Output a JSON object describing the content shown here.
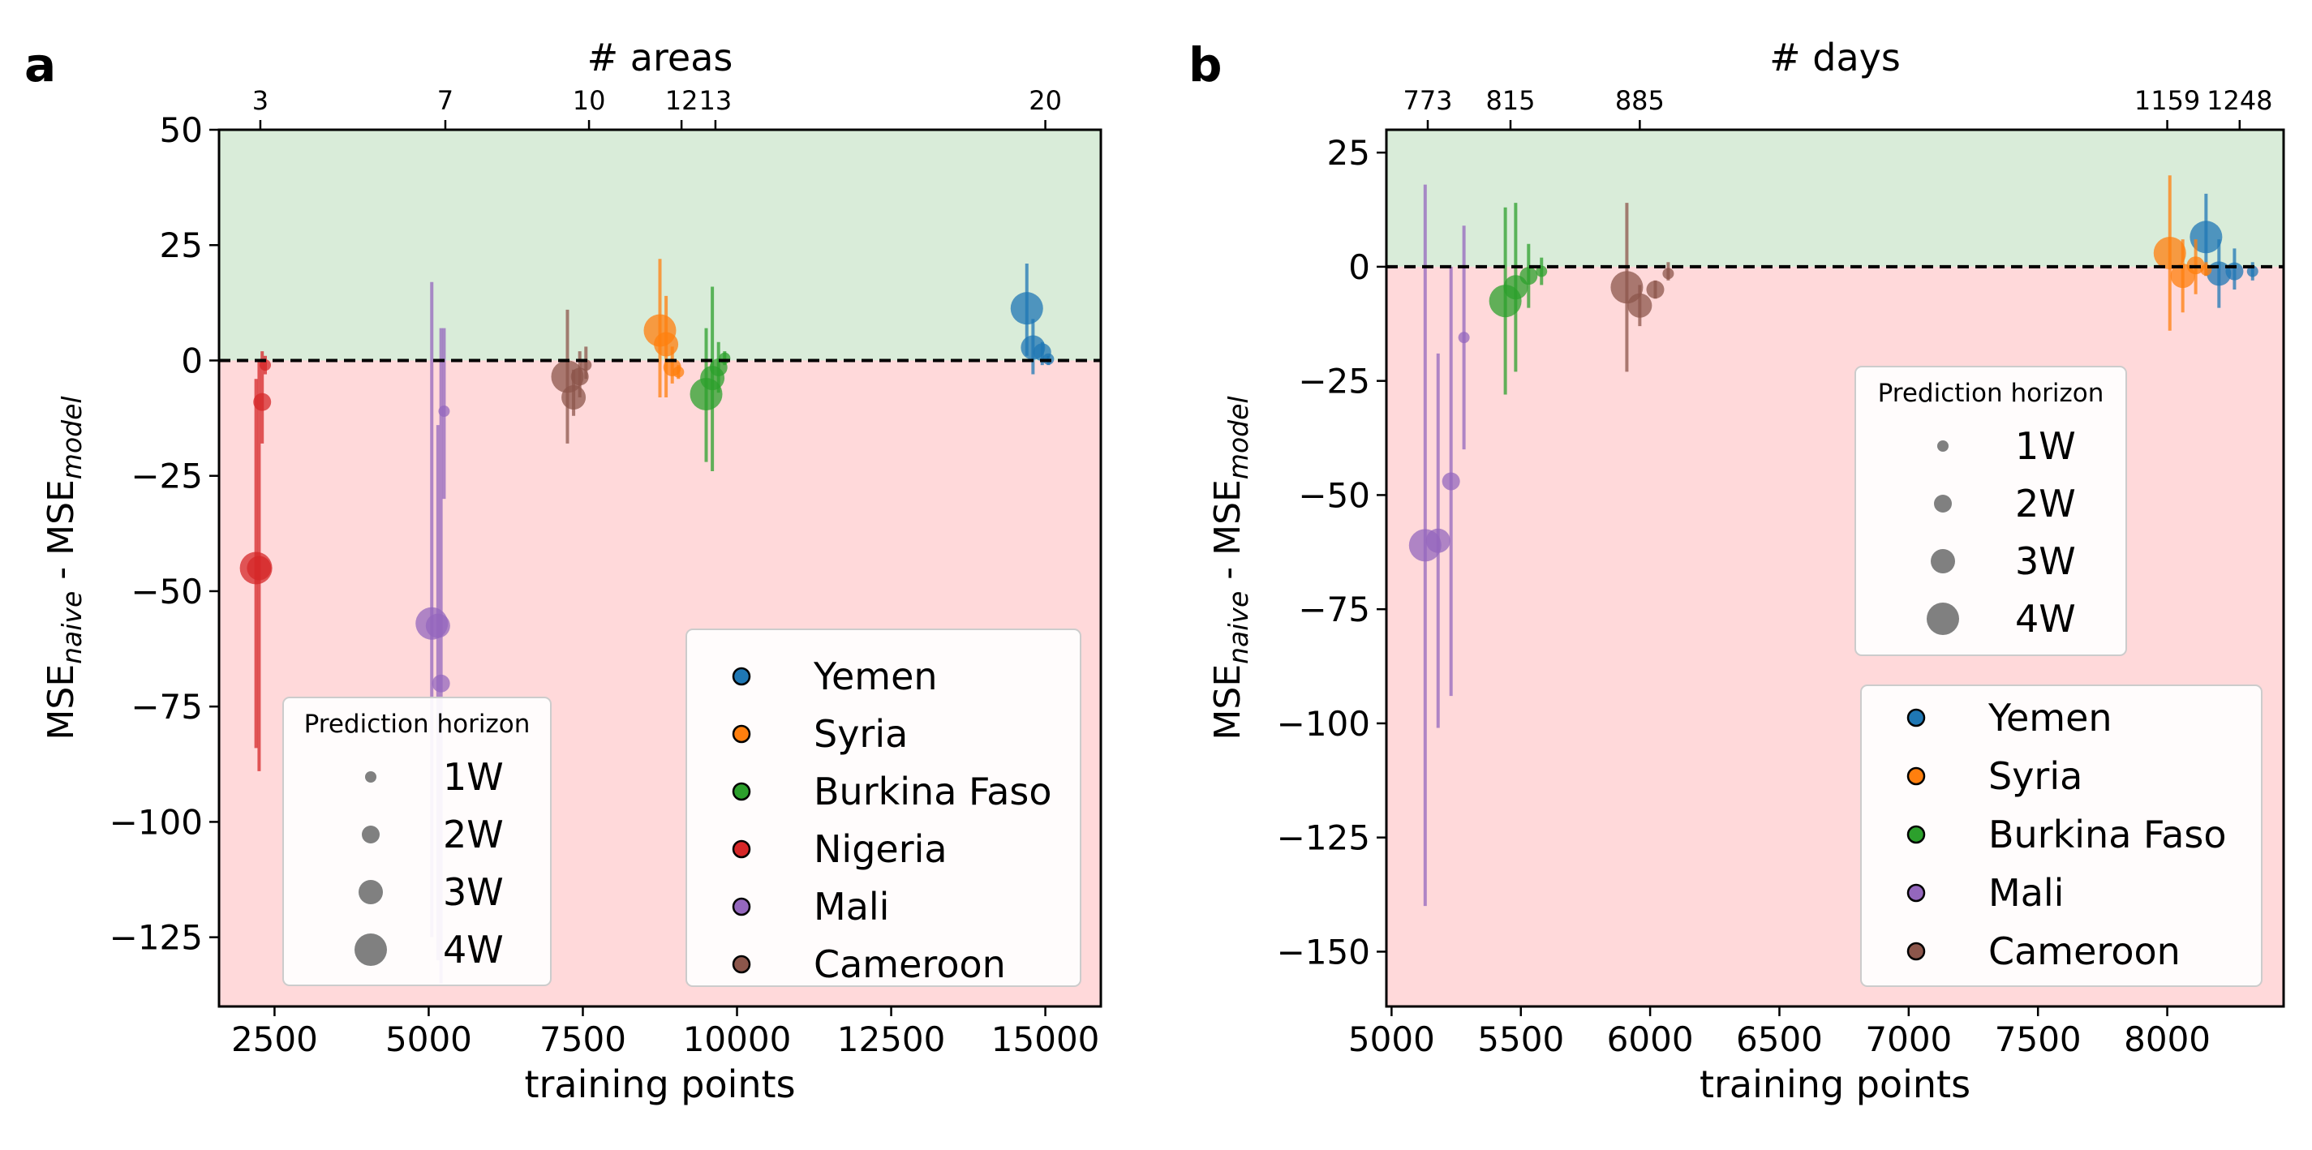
{
  "colors": {
    "Yemen": "#1f77b4",
    "Syria": "#ff7f0e",
    "Burkina Faso": "#2ca02c",
    "Nigeria": "#d62728",
    "Mali": "#9467bd",
    "Cameroon": "#8c564b",
    "positive_region": "#d9ecd9",
    "negative_region": "#ffd9da",
    "legend_marker": "#808080"
  },
  "ylabel": {
    "base": "MSE",
    "sub1": "naive",
    "mid": " - MSE",
    "sub2": "model"
  },
  "chart_data": [
    {
      "panel": "a",
      "type": "scatter",
      "xlabel": "training points",
      "top_axis_label": "# areas",
      "xlim": [
        1600,
        15900
      ],
      "ylim": [
        -140,
        50
      ],
      "xticks": [
        2500,
        5000,
        7500,
        10000,
        12500,
        15000
      ],
      "xtick_labels": [
        "2500",
        "5000",
        "7500",
        "10000",
        "12500",
        "15000"
      ],
      "yticks": [
        50,
        25,
        0,
        -25,
        -50,
        -75,
        -100,
        -125
      ],
      "ytick_labels": [
        "50",
        "25",
        "0",
        "−25",
        "−50",
        "−75",
        "−100",
        "−125"
      ],
      "top_ticks": [
        2270,
        5270,
        7600,
        9100,
        9650,
        15000
      ],
      "top_tick_labels": [
        "3",
        "7",
        "10",
        "12",
        "13",
        "20"
      ],
      "shading": "green above 0, red below 0",
      "reference_line": 0,
      "series": [
        {
          "name": "Yemen",
          "points": [
            {
              "h": "4W",
              "x": 14700,
              "y": 11.3,
              "lo": 1,
              "hi": 21
            },
            {
              "h": "3W",
              "x": 14800,
              "y": 2.8,
              "lo": -3,
              "hi": 9
            },
            {
              "h": "2W",
              "x": 14950,
              "y": 1.8,
              "lo": -1,
              "hi": 4
            },
            {
              "h": "1W",
              "x": 15050,
              "y": 0.3,
              "lo": -1,
              "hi": 1
            }
          ]
        },
        {
          "name": "Syria",
          "points": [
            {
              "h": "4W",
              "x": 8750,
              "y": 6.5,
              "lo": -8,
              "hi": 22
            },
            {
              "h": "3W",
              "x": 8850,
              "y": 3.5,
              "lo": -8,
              "hi": 14
            },
            {
              "h": "2W",
              "x": 8950,
              "y": -1.5,
              "lo": -5,
              "hi": 3
            },
            {
              "h": "1W",
              "x": 9050,
              "y": -2.5,
              "lo": -4,
              "hi": -1
            }
          ]
        },
        {
          "name": "Burkina Faso",
          "points": [
            {
              "h": "4W",
              "x": 9500,
              "y": -7.3,
              "lo": -22,
              "hi": 7
            },
            {
              "h": "3W",
              "x": 9600,
              "y": -3.8,
              "lo": -24,
              "hi": 16
            },
            {
              "h": "2W",
              "x": 9700,
              "y": -1.5,
              "lo": -7,
              "hi": 4
            },
            {
              "h": "1W",
              "x": 9800,
              "y": 0.5,
              "lo": -1,
              "hi": 2
            }
          ]
        },
        {
          "name": "Nigeria",
          "points": [
            {
              "h": "4W",
              "x": 2200,
              "y": -45,
              "lo": -84,
              "hi": -4
            },
            {
              "h": "3W",
              "x": 2250,
              "y": -45,
              "lo": -89,
              "hi": 0
            },
            {
              "h": "2W",
              "x": 2300,
              "y": -9,
              "lo": -18,
              "hi": 2
            },
            {
              "h": "1W",
              "x": 2350,
              "y": -1,
              "lo": -3,
              "hi": 1
            }
          ]
        },
        {
          "name": "Mali",
          "points": [
            {
              "h": "4W",
              "x": 5050,
              "y": -57,
              "lo": -125,
              "hi": 17
            },
            {
              "h": "3W",
              "x": 5150,
              "y": -57.5,
              "lo": -130,
              "hi": -14
            },
            {
              "h": "2W",
              "x": 5200,
              "y": -70,
              "lo": -135,
              "hi": 7
            },
            {
              "h": "1W",
              "x": 5250,
              "y": -11,
              "lo": -30,
              "hi": 7
            }
          ]
        },
        {
          "name": "Cameroon",
          "points": [
            {
              "h": "4W",
              "x": 7250,
              "y": -3.5,
              "lo": -18,
              "hi": 11
            },
            {
              "h": "3W",
              "x": 7350,
              "y": -8,
              "lo": -12,
              "hi": -2
            },
            {
              "h": "2W",
              "x": 7450,
              "y": -3.5,
              "lo": -8,
              "hi": 2
            },
            {
              "h": "1W",
              "x": 7550,
              "y": -1,
              "lo": -4,
              "hi": 3
            }
          ]
        }
      ],
      "legend_countries": [
        "Yemen",
        "Syria",
        "Burkina Faso",
        "Nigeria",
        "Mali",
        "Cameroon"
      ],
      "legend_placement": "lower right",
      "horizon_legend_placement": "lower left",
      "horizon_legend_title": "Prediction horizon",
      "horizon_labels": [
        "1W",
        "2W",
        "3W",
        "4W"
      ]
    },
    {
      "panel": "b",
      "type": "scatter",
      "xlabel": "training points",
      "top_axis_label": "# days",
      "xlim": [
        4980,
        8450
      ],
      "ylim": [
        -162,
        30
      ],
      "xticks": [
        5000,
        5500,
        6000,
        6500,
        7000,
        7500,
        8000
      ],
      "xtick_labels": [
        "5000",
        "5500",
        "6000",
        "6500",
        "7000",
        "7500",
        "8000"
      ],
      "yticks": [
        25,
        0,
        -25,
        -50,
        -75,
        -100,
        -125,
        -150
      ],
      "ytick_labels": [
        "25",
        "0",
        "−25",
        "−50",
        "−75",
        "−100",
        "−125",
        "−150"
      ],
      "top_ticks": [
        5140,
        5460,
        5960,
        8000,
        8280
      ],
      "top_tick_labels": [
        "773",
        "815",
        "885",
        "1159",
        "1248"
      ],
      "shading": "green above 0, red below 0",
      "reference_line": 0,
      "series": [
        {
          "name": "Yemen",
          "points": [
            {
              "h": "4W",
              "x": 8150,
              "y": 6.5,
              "lo": -2,
              "hi": 16
            },
            {
              "h": "3W",
              "x": 8200,
              "y": -1.5,
              "lo": -9,
              "hi": 6
            },
            {
              "h": "2W",
              "x": 8260,
              "y": -1,
              "lo": -5,
              "hi": 4
            },
            {
              "h": "1W",
              "x": 8330,
              "y": -1,
              "lo": -3,
              "hi": 1
            }
          ]
        },
        {
          "name": "Syria",
          "points": [
            {
              "h": "4W",
              "x": 8010,
              "y": 3,
              "lo": -14,
              "hi": 20
            },
            {
              "h": "3W",
              "x": 8060,
              "y": -2,
              "lo": -10,
              "hi": 6
            },
            {
              "h": "2W",
              "x": 8110,
              "y": 0.3,
              "lo": -6,
              "hi": 6
            },
            {
              "h": "1W",
              "x": 8150,
              "y": -0.7,
              "lo": -2,
              "hi": 1
            }
          ]
        },
        {
          "name": "Burkina Faso",
          "points": [
            {
              "h": "4W",
              "x": 5440,
              "y": -7.5,
              "lo": -28,
              "hi": 13
            },
            {
              "h": "3W",
              "x": 5480,
              "y": -4.5,
              "lo": -23,
              "hi": 14
            },
            {
              "h": "2W",
              "x": 5530,
              "y": -2,
              "lo": -9,
              "hi": 5
            },
            {
              "h": "1W",
              "x": 5580,
              "y": -1,
              "lo": -4,
              "hi": 2
            }
          ]
        },
        {
          "name": "Mali",
          "points": [
            {
              "h": "4W",
              "x": 5130,
              "y": -61,
              "lo": -140,
              "hi": 18
            },
            {
              "h": "3W",
              "x": 5180,
              "y": -60,
              "lo": -101,
              "hi": -19
            },
            {
              "h": "2W",
              "x": 5230,
              "y": -47,
              "lo": -94,
              "hi": 0
            },
            {
              "h": "1W",
              "x": 5280,
              "y": -15.5,
              "lo": -40,
              "hi": 9
            }
          ]
        },
        {
          "name": "Cameroon",
          "points": [
            {
              "h": "4W",
              "x": 5910,
              "y": -4.5,
              "lo": -23,
              "hi": 14
            },
            {
              "h": "3W",
              "x": 5960,
              "y": -8.5,
              "lo": -13,
              "hi": -4
            },
            {
              "h": "2W",
              "x": 6020,
              "y": -5,
              "lo": -7,
              "hi": -3
            },
            {
              "h": "1W",
              "x": 6070,
              "y": -1.5,
              "lo": -3,
              "hi": 1
            }
          ]
        }
      ],
      "legend_countries": [
        "Yemen",
        "Syria",
        "Burkina Faso",
        "Mali",
        "Cameroon"
      ],
      "legend_placement": "lower right",
      "horizon_legend_placement": "center right",
      "horizon_legend_title": "Prediction horizon",
      "horizon_labels": [
        "1W",
        "2W",
        "3W",
        "4W"
      ]
    }
  ]
}
